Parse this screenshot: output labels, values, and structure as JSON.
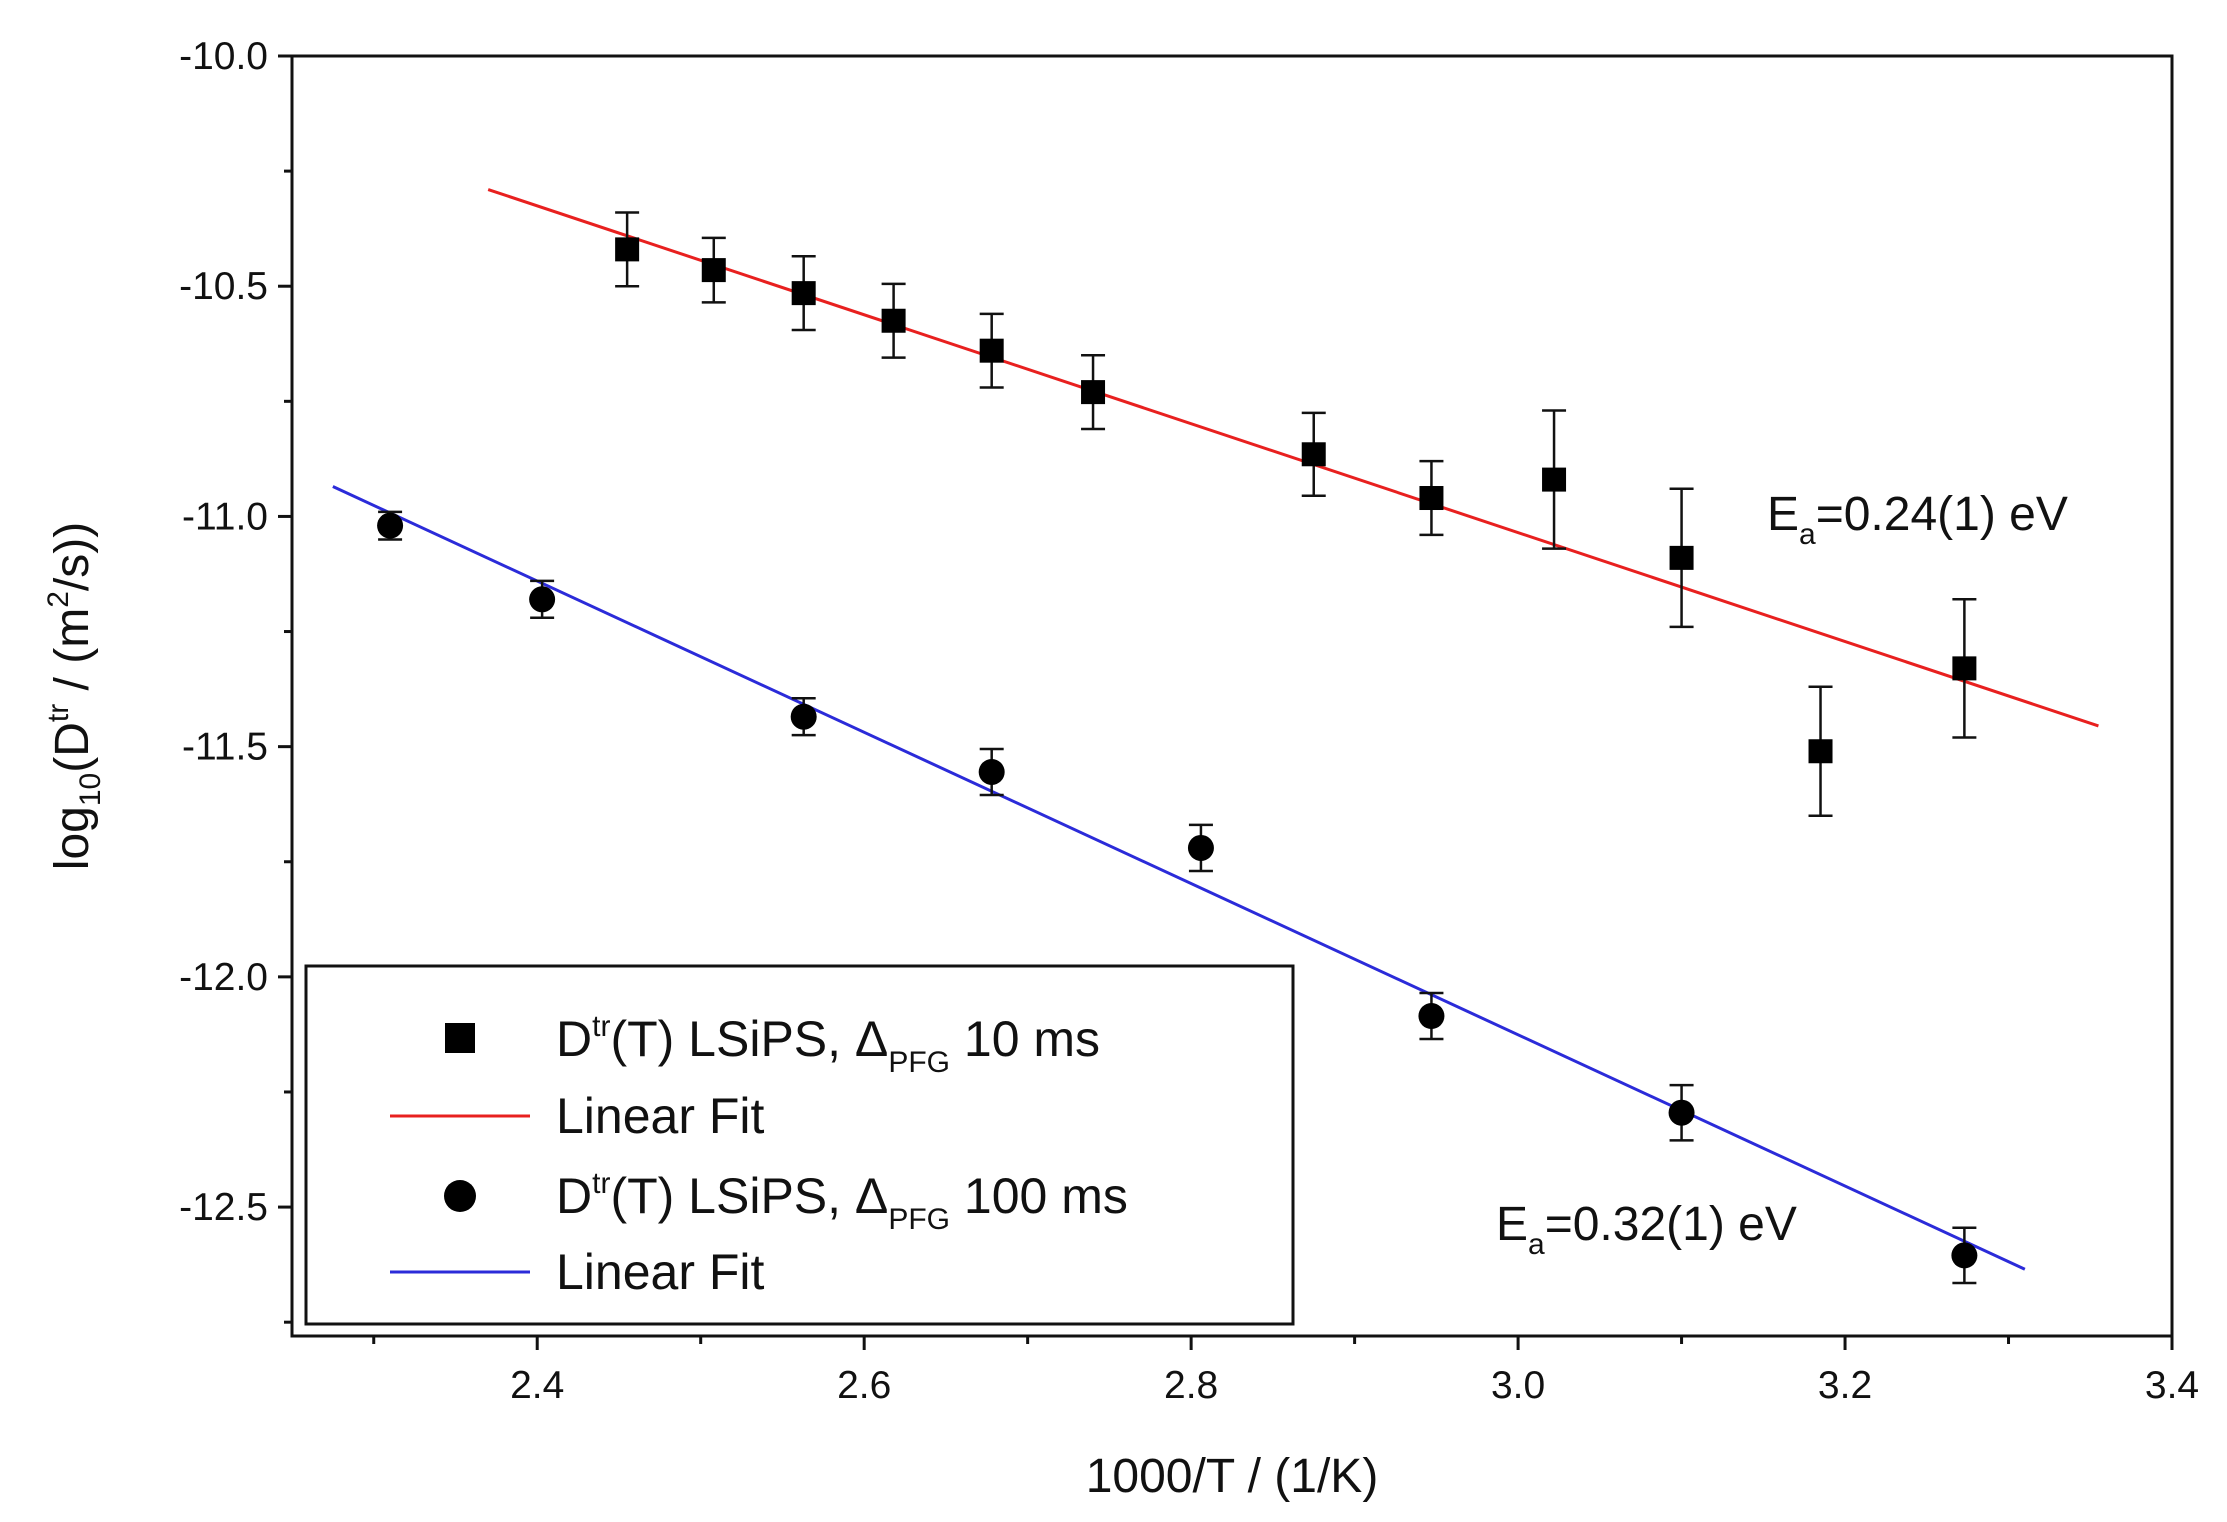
{
  "chart_data": {
    "type": "scatter",
    "xlabel": "1000/T / (1/K)",
    "ylabel": {
      "prefix": "log",
      "sub": "10",
      "mid": "(D",
      "sup": "tr",
      "unit_pre": " / (m",
      "unit_sup": "2",
      "unit_post": "/s))"
    },
    "xlim": [
      2.25,
      3.4
    ],
    "ylim": [
      -12.78,
      -10.0
    ],
    "xticks": [
      2.4,
      2.6,
      2.8,
      3.0,
      3.2,
      3.4
    ],
    "xtick_labels": [
      "2.4",
      "2.6",
      "2.8",
      "3.0",
      "3.2",
      "3.4"
    ],
    "yticks": [
      -10.0,
      -10.5,
      -11.0,
      -11.5,
      -12.0,
      -12.5
    ],
    "ytick_labels": [
      "-10.0",
      "-10.5",
      "-11.0",
      "-11.5",
      "-12.0",
      "-12.5"
    ],
    "legend_position": "bottom-left",
    "series": [
      {
        "kind": "points",
        "marker": "square",
        "color": "#000000",
        "legend": {
          "pre": "D",
          "sup": "tr",
          "mid": "(T) LSiPS, Δ",
          "sub": "PFG",
          "post": " 10 ms"
        },
        "x": [
          2.455,
          2.508,
          2.563,
          2.618,
          2.678,
          2.74,
          2.875,
          2.947,
          3.022,
          3.1,
          3.185,
          3.273
        ],
        "y": [
          -10.42,
          -10.465,
          -10.515,
          -10.575,
          -10.64,
          -10.73,
          -10.865,
          -10.96,
          -10.92,
          -11.09,
          -11.51,
          -11.33
        ],
        "yerr": [
          0.08,
          0.07,
          0.08,
          0.08,
          0.08,
          0.08,
          0.09,
          0.08,
          0.15,
          0.15,
          0.14,
          0.15
        ]
      },
      {
        "kind": "line",
        "color": "#e8201f",
        "legend": {
          "text": "Linear Fit"
        },
        "x": [
          2.37,
          3.355
        ],
        "y": [
          -10.29,
          -11.455
        ]
      },
      {
        "kind": "points",
        "marker": "circle",
        "color": "#000000",
        "legend": {
          "pre": "D",
          "sup": "tr",
          "mid": "(T) LSiPS, Δ",
          "sub": "PFG",
          "post": " 100 ms"
        },
        "x": [
          2.31,
          2.403,
          2.563,
          2.678,
          2.806,
          2.947,
          3.1,
          3.273
        ],
        "y": [
          -11.02,
          -11.18,
          -11.435,
          -11.555,
          -11.72,
          -12.085,
          -12.295,
          -12.605
        ],
        "yerr": [
          0.03,
          0.04,
          0.04,
          0.05,
          0.05,
          0.05,
          0.06,
          0.06
        ]
      },
      {
        "kind": "line",
        "color": "#2b2bd9",
        "legend": {
          "text": "Linear Fit"
        },
        "x": [
          2.275,
          3.31
        ],
        "y": [
          -10.935,
          -12.635
        ]
      }
    ],
    "annotations": [
      {
        "id": "ea-top",
        "pre": "E",
        "sub": "a",
        "post": "=0.24(1) eV",
        "x": 3.15,
        "y": -11.0
      },
      {
        "id": "ea-bottom",
        "pre": "E",
        "sub": "a",
        "post": "=0.32(1) eV",
        "x": 2.98,
        "y": -12.55
      }
    ]
  }
}
